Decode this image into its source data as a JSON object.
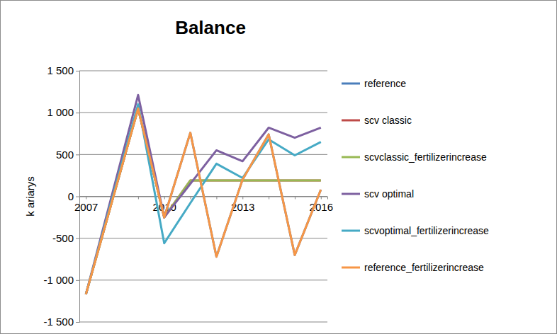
{
  "chart_data": {
    "type": "line",
    "title": "Balance",
    "y_label": "k ariarys",
    "categories": [
      "2007",
      null,
      null,
      "2010",
      null,
      null,
      "2013",
      null,
      null,
      "2016"
    ],
    "ylim": [
      -1500,
      1500
    ],
    "yticks": [
      {
        "value": -1500,
        "label": "-1 500"
      },
      {
        "value": -1000,
        "label": "-1 000"
      },
      -500,
      0,
      500,
      {
        "value": 1000,
        "label": "1 000"
      },
      {
        "value": 1500,
        "label": "1 500"
      }
    ],
    "grid": true,
    "legend": "right",
    "series": [
      {
        "name": "reference",
        "color": "#4a7ebb",
        "values": [
          -1170,
          -60,
          1050,
          -250,
          760,
          -720,
          200,
          740,
          -700,
          80
        ]
      },
      {
        "name": "scv classic",
        "color": "#be4b48",
        "values": [
          -1170,
          -60,
          1050,
          -250,
          190,
          190,
          190,
          190,
          190,
          190
        ]
      },
      {
        "name": "scvclassic_fertilizerincrease",
        "color": "#98b954",
        "values": [
          -1170,
          -60,
          1050,
          -250,
          190,
          190,
          190,
          190,
          190,
          190
        ]
      },
      {
        "name": "scv optimal",
        "color": "#7d60a0",
        "values": [
          -1170,
          20,
          1210,
          -250,
          150,
          550,
          420,
          820,
          700,
          820
        ]
      },
      {
        "name": "scvoptimal_fertilizerincrease",
        "color": "#46aac5",
        "values": [
          -1170,
          -30,
          1100,
          -560,
          -80,
          390,
          220,
          680,
          490,
          650
        ]
      },
      {
        "name": "reference_fertilizerincrease",
        "color": "#f79646",
        "values": [
          -1170,
          -60,
          1050,
          -250,
          760,
          -720,
          200,
          740,
          -700,
          80
        ]
      }
    ]
  }
}
